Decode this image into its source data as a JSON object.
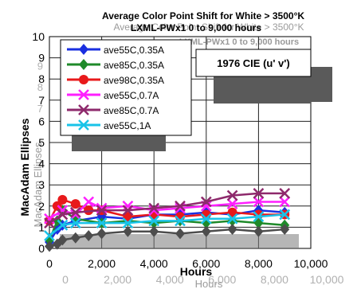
{
  "chart_data": {
    "type": "line",
    "title": "Average Color Point Shift for White > 3500°K",
    "subtitle": "LXML-PWx1 0 to 9,000 hours",
    "ghost_title": "Average Color Point Shift for White > 3500°K",
    "ghost_subtitle": "LXML-PWx1 0 to 9,000 hours",
    "annotation": "1976 CIE (u' v')",
    "xlabel": "Hours",
    "ylabel": "MacAdam Ellipses",
    "ghost_xlabel": "Hours",
    "ghost_ylabel": "MacAdam Ellipses",
    "xlim": [
      0,
      10000
    ],
    "ylim": [
      0,
      10
    ],
    "x_ticks": [
      "0",
      "2,000",
      "4,000",
      "6,000",
      "8,000",
      "10,000"
    ],
    "y_ticks": [
      "0",
      "1",
      "2",
      "3",
      "4",
      "5",
      "6",
      "7",
      "8",
      "9",
      "10"
    ],
    "ghost_x_ticks": [
      "0",
      "2,000",
      "4,000",
      "6,000",
      "8,000",
      "10,000"
    ],
    "ghost_y_ticks": [
      "9",
      "8",
      "7"
    ],
    "grid": true,
    "legend_position": "top-left",
    "series": [
      {
        "name": "ave55C,0.35A",
        "color": "#1a2fe0",
        "marker": "diamond",
        "x": [
          0,
          300,
          500,
          1000,
          2000,
          3000,
          4000,
          5000,
          6000,
          7000,
          8000,
          9000
        ],
        "y": [
          0.3,
          0.9,
          1.1,
          1.3,
          1.5,
          1.4,
          1.6,
          1.6,
          1.7,
          1.6,
          1.8,
          1.7
        ]
      },
      {
        "name": "ave85C,0.35A",
        "color": "#1f8a2a",
        "marker": "diamond",
        "x": [
          0,
          300,
          500,
          1000,
          2000,
          3000,
          4000,
          5000,
          6000,
          7000,
          8000,
          9000
        ],
        "y": [
          0.4,
          1.3,
          1.8,
          1.4,
          1.2,
          1.3,
          1.2,
          1.3,
          1.2,
          1.3,
          1.2,
          1.1
        ]
      },
      {
        "name": "ave98C,0.35A",
        "color": "#e8191b",
        "marker": "circle",
        "x": [
          0,
          300,
          500,
          1000,
          1500,
          2000,
          3000,
          4000,
          5000,
          6000,
          7000,
          8000,
          9000
        ],
        "y": [
          1.3,
          2.0,
          2.3,
          2.1,
          1.8,
          1.8,
          1.5,
          1.6,
          1.5,
          1.6,
          1.7,
          1.6,
          1.6
        ]
      },
      {
        "name": "ave55C,0.7A",
        "color": "#ff1fff",
        "marker": "x",
        "x": [
          0,
          500,
          1000,
          1500,
          2000,
          3000,
          4000,
          5000,
          6000,
          7000,
          8000,
          9000
        ],
        "y": [
          1.4,
          1.8,
          1.6,
          2.2,
          1.9,
          2.0,
          1.8,
          1.9,
          2.0,
          2.1,
          2.2,
          2.2
        ]
      },
      {
        "name": "ave85C,0.7A",
        "color": "#8e2a6c",
        "marker": "x",
        "x": [
          0,
          500,
          1000,
          2000,
          3000,
          4000,
          5000,
          6000,
          7000,
          8000,
          9000
        ],
        "y": [
          1.2,
          1.6,
          1.7,
          1.8,
          1.8,
          1.9,
          2.0,
          2.2,
          2.5,
          2.6,
          2.6
        ]
      },
      {
        "name": "ave55C,1A",
        "color": "#19c3e8",
        "marker": "x",
        "x": [
          0,
          500,
          1000,
          2000,
          3000,
          4000,
          5000,
          6000,
          7000,
          8000,
          9000
        ],
        "y": [
          0.6,
          1.1,
          1.2,
          1.2,
          1.2,
          1.3,
          1.3,
          1.4,
          1.4,
          1.5,
          1.6
        ]
      },
      {
        "name": "",
        "color": "#4d4d4d",
        "marker": "diamond",
        "x": [
          0,
          300,
          500,
          1000,
          1500,
          2000,
          3000,
          4000,
          5000,
          6000,
          7000,
          8000,
          9000
        ],
        "y": [
          0.1,
          0.2,
          0.4,
          0.5,
          0.6,
          0.7,
          0.8,
          0.8,
          0.7,
          0.8,
          0.9,
          0.8,
          0.9
        ]
      }
    ]
  }
}
